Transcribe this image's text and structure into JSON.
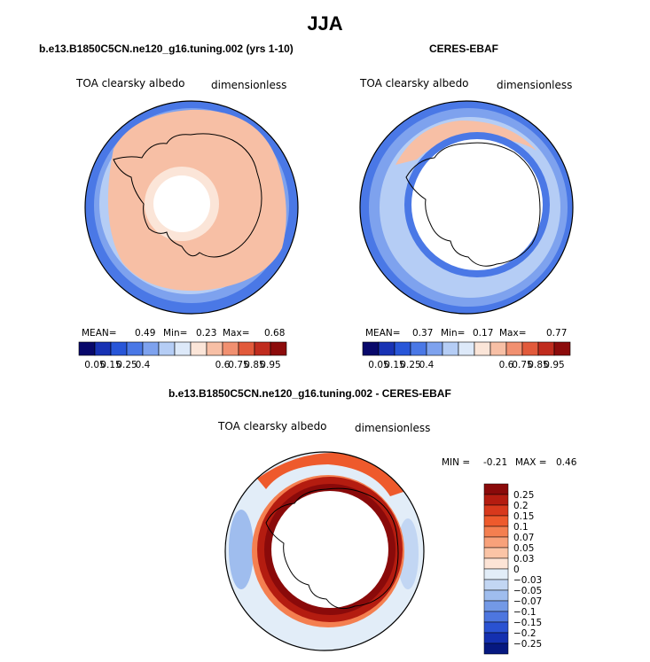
{
  "figure": {
    "title": "JJA"
  },
  "chart_data": [
    {
      "type": "heatmap",
      "projection": "south polar stereographic",
      "title": "b.e13.B1850C5CN.ne120_g16.tuning.002 (yrs 1-10)",
      "variable": "TOA clearsky albedo",
      "units": "dimensionless",
      "stats": {
        "mean_label": "MEAN=",
        "mean": "0.49",
        "min_label": "Min=",
        "min": "0.23",
        "max_label": "Max=",
        "max": "0.68"
      },
      "colorbar_ticks": [
        "0.05",
        "0.15",
        "0.25",
        "0.4",
        "0.6",
        "0.75",
        "0.85",
        "0.95"
      ],
      "colorbar_colors": [
        "#08086b",
        "#1832b4",
        "#2856d8",
        "#4a78e6",
        "#7ea2ee",
        "#b5cdf5",
        "#dde9f9",
        "#fbe5d8",
        "#f7bfa5",
        "#f19070",
        "#e25a3b",
        "#c02c1e",
        "#8c0b0b"
      ]
    },
    {
      "type": "heatmap",
      "projection": "south polar stereographic",
      "title": "CERES-EBAF",
      "variable": "TOA clearsky albedo",
      "units": "dimensionless",
      "stats": {
        "mean_label": "MEAN=",
        "mean": "0.37",
        "min_label": "Min=",
        "min": "0.17",
        "max_label": "Max=",
        "max": "0.77"
      },
      "colorbar_ticks": [
        "0.05",
        "0.15",
        "0.25",
        "0.4",
        "0.6",
        "0.75",
        "0.85",
        "0.95"
      ],
      "colorbar_colors": [
        "#08086b",
        "#1832b4",
        "#2856d8",
        "#4a78e6",
        "#7ea2ee",
        "#b5cdf5",
        "#dde9f9",
        "#fbe5d8",
        "#f7bfa5",
        "#f19070",
        "#e25a3b",
        "#c02c1e",
        "#8c0b0b"
      ]
    },
    {
      "type": "heatmap",
      "projection": "south polar stereographic",
      "title": "b.e13.B1850C5CN.ne120_g16.tuning.002 - CERES-EBAF",
      "variable": "TOA clearsky albedo",
      "units": "dimensionless",
      "stats": {
        "min_label": "MIN =",
        "min": "-0.21",
        "max_label": "MAX =",
        "max": "0.46"
      },
      "colorbar_ticks": [
        "0.25",
        "0.2",
        "0.15",
        "0.1",
        "0.07",
        "0.05",
        "0.03",
        "0",
        "−0.03",
        "−0.05",
        "−0.07",
        "−0.1",
        "−0.15",
        "−0.2",
        "−0.25"
      ],
      "colorbar_colors": [
        "#8a0a0a",
        "#b41c10",
        "#d8391c",
        "#ee5a2c",
        "#f47f50",
        "#f8a17a",
        "#fbc4a6",
        "#fde4d6",
        "#e2edf8",
        "#c2d6f3",
        "#9fbdee",
        "#7399e6",
        "#4d76df",
        "#2a52d2",
        "#1430b0",
        "#061880"
      ]
    }
  ]
}
